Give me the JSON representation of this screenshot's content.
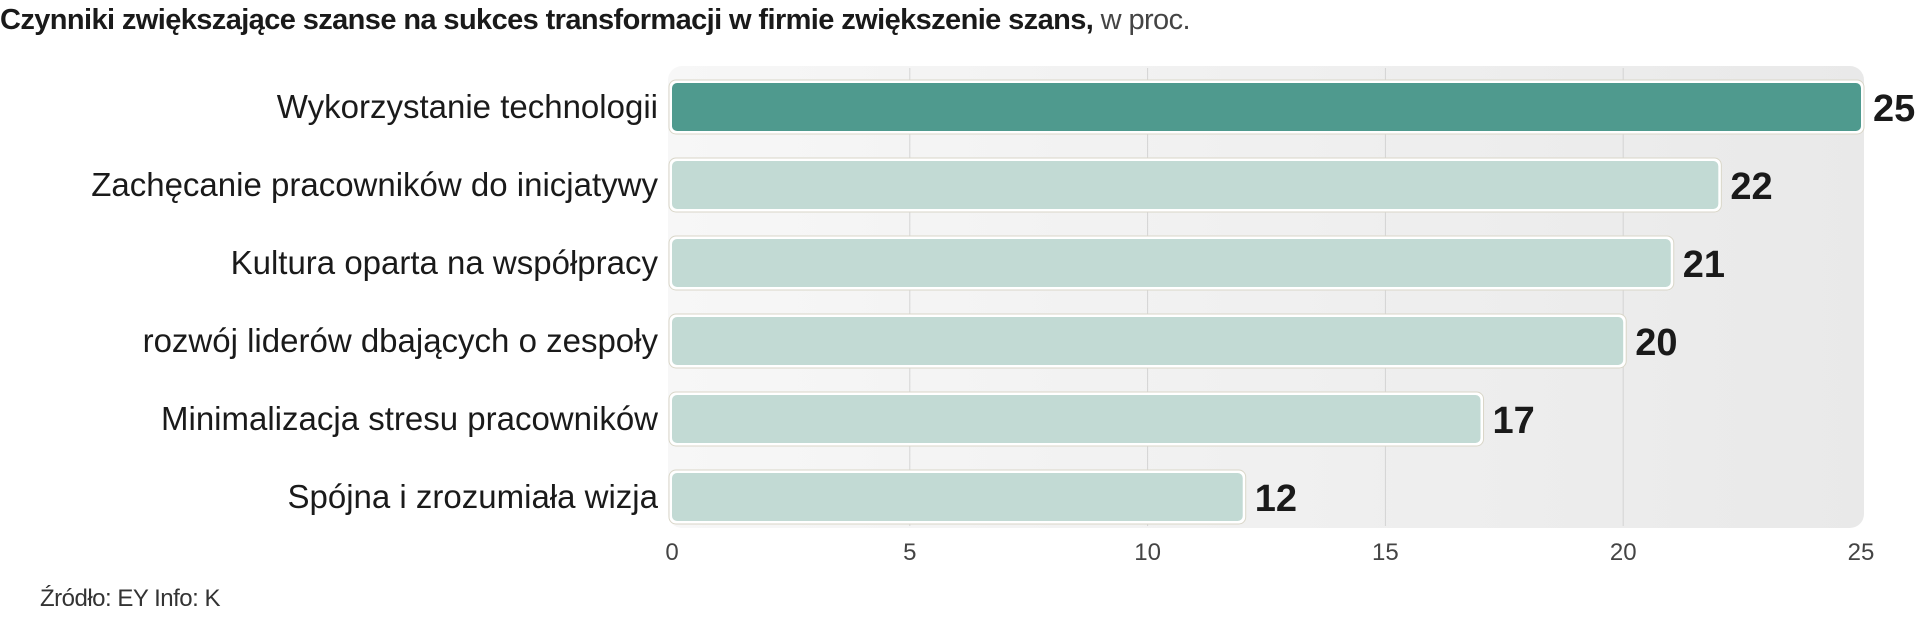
{
  "chart_data": {
    "type": "bar",
    "orientation": "horizontal",
    "title": "Czynniki zwiększające szanse na sukces transformacji w firmie  zwiększenie szans,",
    "subtitle": "w proc.",
    "categories": [
      "Wykorzystanie technologii",
      "Zachęcanie pracowników do inicjatywy",
      "Kultura oparta na współpracy",
      "rozwój liderów dbających o zespoły",
      "Minimalizacja stresu pracowników",
      "Spójna i zrozumiała wizja"
    ],
    "values": [
      25,
      22,
      21,
      20,
      17,
      12
    ],
    "xlim": [
      0,
      25
    ],
    "xticks": [
      0,
      5,
      10,
      15,
      20,
      25
    ],
    "grid": true,
    "colors": {
      "highlight": "#4f9a8e",
      "default": "#c2dad4",
      "background": "#efefef",
      "grid": "#d4d4d4"
    },
    "source": "Źródło: EY Info: K"
  }
}
